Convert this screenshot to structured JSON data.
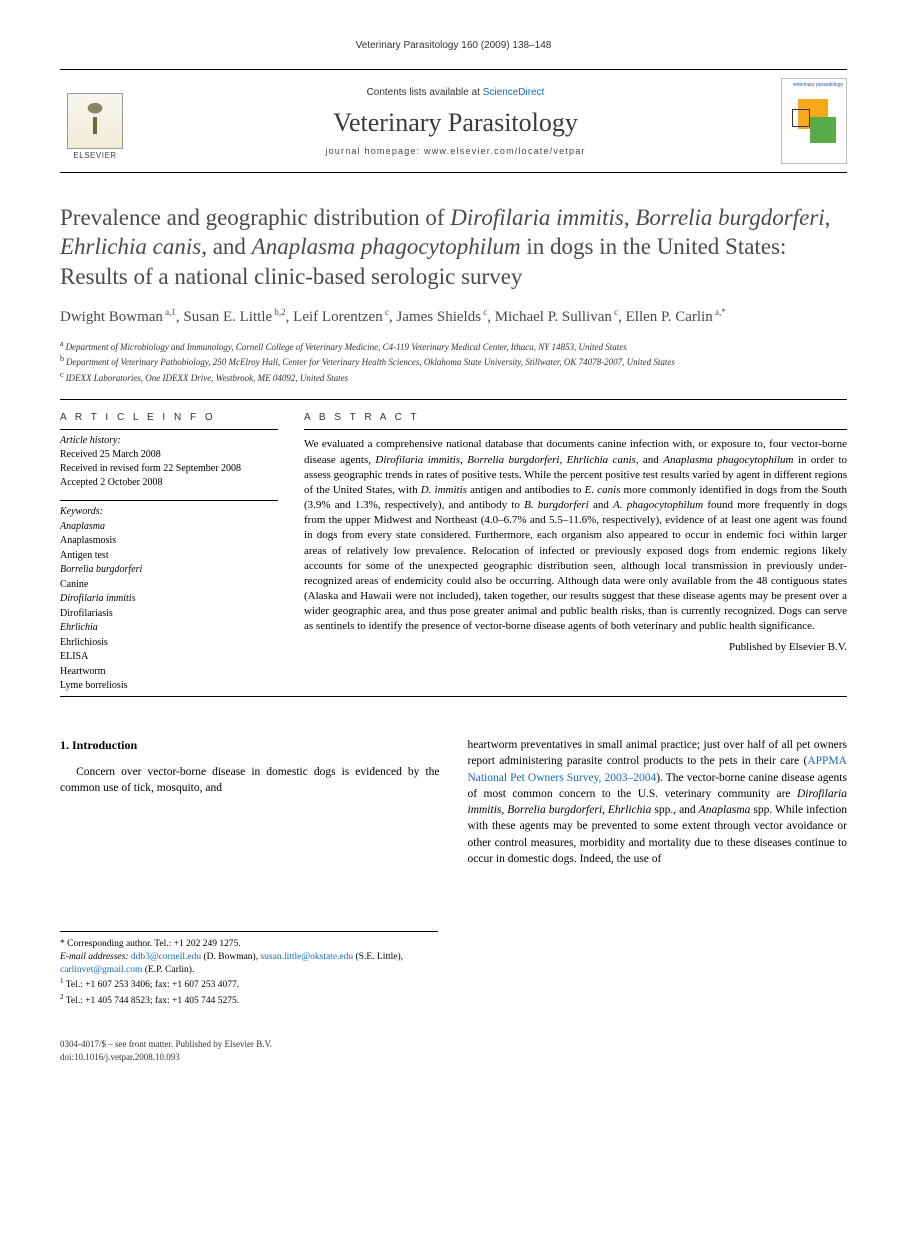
{
  "runningHead": "Veterinary Parasitology 160 (2009) 138–148",
  "masthead": {
    "contentsPrefix": "Contents lists available at ",
    "scienceDirect": "ScienceDirect",
    "journal": "Veterinary Parasitology",
    "homepagePrefix": "journal homepage: ",
    "homepage": "www.elsevier.com/locate/vetpar",
    "publisherWord": "ELSEVIER",
    "coverTitle": "veterinary parasitology"
  },
  "title": {
    "parts": [
      {
        "t": "Prevalence and geographic distribution of ",
        "i": false
      },
      {
        "t": "Dirofilaria immitis",
        "i": true
      },
      {
        "t": ", ",
        "i": false
      },
      {
        "t": "Borrelia burgdorferi",
        "i": true
      },
      {
        "t": ", ",
        "i": false
      },
      {
        "t": "Ehrlichia canis",
        "i": true
      },
      {
        "t": ", and ",
        "i": false
      },
      {
        "t": "Anaplasma phagocytophilum",
        "i": true
      },
      {
        "t": " in dogs in the United States: Results of a national clinic-based serologic survey",
        "i": false
      }
    ]
  },
  "authors": [
    {
      "name": "Dwight Bowman",
      "marks": "a,1"
    },
    {
      "name": "Susan E. Little",
      "marks": "b,2"
    },
    {
      "name": "Leif Lorentzen",
      "marks": "c"
    },
    {
      "name": "James Shields",
      "marks": "c"
    },
    {
      "name": "Michael P. Sullivan",
      "marks": "c"
    },
    {
      "name": "Ellen P. Carlin",
      "marks": "a,*"
    }
  ],
  "affiliations": [
    {
      "key": "a",
      "text": "Department of Microbiology and Immunology, Cornell College of Veterinary Medicine, C4-119 Veterinary Medical Center, Ithaca, NY 14853, United States"
    },
    {
      "key": "b",
      "text": "Department of Veterinary Pathobiology, 250 McElroy Hall, Center for Veterinary Health Sciences, Oklahoma State University, Stillwater, OK 74078-2007, United States"
    },
    {
      "key": "c",
      "text": "IDEXX Laboratories, One IDEXX Drive, Westbrook, ME 04092, United States"
    }
  ],
  "info": {
    "heading": "A R T I C L E   I N F O",
    "historyLabel": "Article history:",
    "history": [
      "Received 25 March 2008",
      "Received in revised form 22 September 2008",
      "Accepted 2 October 2008"
    ],
    "kwLabel": "Keywords:",
    "keywords": [
      {
        "t": "Anaplasma",
        "i": true
      },
      {
        "t": "Anaplasmosis",
        "i": false
      },
      {
        "t": "Antigen test",
        "i": false
      },
      {
        "t": "Borrelia burgdorferi",
        "i": true
      },
      {
        "t": "Canine",
        "i": false
      },
      {
        "t": "Dirofilaria immitis",
        "i": true
      },
      {
        "t": "Dirofilariasis",
        "i": false
      },
      {
        "t": "Ehrlichia",
        "i": true
      },
      {
        "t": "Ehrlichiosis",
        "i": false
      },
      {
        "t": "ELISA",
        "i": false
      },
      {
        "t": "Heartworm",
        "i": false
      },
      {
        "t": "Lyme borreliosis",
        "i": false
      }
    ]
  },
  "abstract": {
    "heading": "A B S T R A C T",
    "parts": [
      {
        "t": "We evaluated a comprehensive national database that documents canine infection with, or exposure to, four vector-borne disease agents, ",
        "i": false
      },
      {
        "t": "Dirofilaria immitis",
        "i": true
      },
      {
        "t": ", ",
        "i": false
      },
      {
        "t": "Borrelia burgdorferi",
        "i": true
      },
      {
        "t": ", ",
        "i": false
      },
      {
        "t": "Ehrlichia canis",
        "i": true
      },
      {
        "t": ", and ",
        "i": false
      },
      {
        "t": "Anaplasma phagocytophilum",
        "i": true
      },
      {
        "t": " in order to assess geographic trends in rates of positive tests. While the percent positive test results varied by agent in different regions of the United States, with ",
        "i": false
      },
      {
        "t": "D. immitis",
        "i": true
      },
      {
        "t": " antigen and antibodies to ",
        "i": false
      },
      {
        "t": "E. canis",
        "i": true
      },
      {
        "t": " more commonly identified in dogs from the South (3.9% and 1.3%, respectively), and antibody to ",
        "i": false
      },
      {
        "t": "B. burgdorferi",
        "i": true
      },
      {
        "t": " and ",
        "i": false
      },
      {
        "t": "A. phagocytophilum",
        "i": true
      },
      {
        "t": " found more frequently in dogs from the upper Midwest and Northeast (4.0–6.7% and 5.5–11.6%, respectively), evidence of at least one agent was found in dogs from every state considered. Furthermore, each organism also appeared to occur in endemic foci within larger areas of relatively low prevalence. Relocation of infected or previously exposed dogs from endemic regions likely accounts for some of the unexpected geographic distribution seen, although local transmission in previously under-recognized areas of endemicity could also be occurring. Although data were only available from the 48 contiguous states (Alaska and Hawaii were not included), taken together, our results suggest that these disease agents may be present over a wider geographic area, and thus pose greater animal and public health risks, than is currently recognized. Dogs can serve as sentinels to identify the presence of vector-borne disease agents of both veterinary and public health significance.",
        "i": false
      }
    ],
    "pubNote": "Published by Elsevier B.V."
  },
  "body": {
    "secNum": "1.",
    "secTitle": "Introduction",
    "leftParaParts": [
      {
        "t": "Concern over vector-borne disease in domestic dogs is evidenced by the common use of tick, mosquito, and",
        "i": false
      }
    ],
    "rightParaParts": [
      {
        "t": "heartworm preventatives in small animal practice; just over half of all pet owners report administering parasite control products to the pets in their care (",
        "i": false,
        "link": false
      },
      {
        "t": "APPMA National Pet Owners Survey, 2003–2004",
        "i": false,
        "link": true
      },
      {
        "t": "). The vector-borne canine disease agents of most common concern to the U.S. veterinary community are ",
        "i": false,
        "link": false
      },
      {
        "t": "Dirofilaria immitis",
        "i": true,
        "link": false
      },
      {
        "t": ", ",
        "i": false,
        "link": false
      },
      {
        "t": "Borrelia burgdorferi",
        "i": true,
        "link": false
      },
      {
        "t": ", ",
        "i": false,
        "link": false
      },
      {
        "t": "Ehrlichia",
        "i": true,
        "link": false
      },
      {
        "t": " spp., and ",
        "i": false,
        "link": false
      },
      {
        "t": "Anaplasma",
        "i": true,
        "link": false
      },
      {
        "t": " spp. While infection with these agents may be prevented to some extent through vector avoidance or other control measures, morbidity and mortality due to these diseases continue to occur in domestic dogs. Indeed, the use of",
        "i": false,
        "link": false
      }
    ]
  },
  "footnotes": {
    "corrLine": "* Corresponding author. Tel.: +1 202 249 1275.",
    "emailLabel": "E-mail addresses: ",
    "emails": [
      {
        "addr": "ddb3@cornell.edu",
        "who": " (D. Bowman), "
      },
      {
        "addr": "susan.little@okstate.edu",
        "who": " (S.E. Little), "
      },
      {
        "addr": "carlinvet@gmail.com",
        "who": " (E.P. Carlin)."
      }
    ],
    "notes": [
      {
        "n": "1",
        "t": " Tel.: +1 607 253 3406; fax: +1 607 253 4077."
      },
      {
        "n": "2",
        "t": " Tel.: +1 405 744 8523; fax: +1 405 744 5275."
      }
    ]
  },
  "footer": {
    "line1": "0304-4017/$ – see front matter. Published by Elsevier B.V.",
    "line2": "doi:10.1016/j.vetpar.2008.10.093"
  },
  "colors": {
    "link": "#1a6bb8",
    "text": "#000000",
    "headGrey": "#4a4a4a",
    "rule": "#000000"
  }
}
